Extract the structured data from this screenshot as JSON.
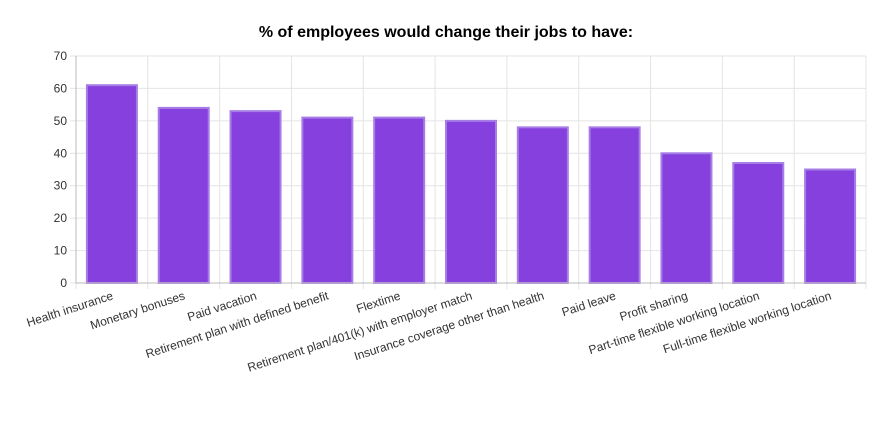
{
  "chart_data": {
    "type": "bar",
    "title": "% of employees would change their jobs to have:",
    "categories": [
      "Health insurance",
      "Monetary bonuses",
      "Paid vacation",
      "Retirement plan with defined benefit",
      "Flextime",
      "Retirement plan/401(k) with employer match",
      "Insurance coverage other than health",
      "Paid leave",
      "Profit sharing",
      "Part-time flexible working location",
      "Full-time flexible working location"
    ],
    "values": [
      61,
      54,
      53,
      51,
      51,
      50,
      48,
      48,
      40,
      37,
      35
    ],
    "ylim": [
      0,
      70
    ],
    "yticks": [
      0,
      10,
      20,
      30,
      40,
      50,
      60,
      70
    ],
    "grid": true,
    "legend": "none",
    "colors": {
      "bar_fill": "#8540dd",
      "bar_stroke": "#a77ee6"
    }
  }
}
